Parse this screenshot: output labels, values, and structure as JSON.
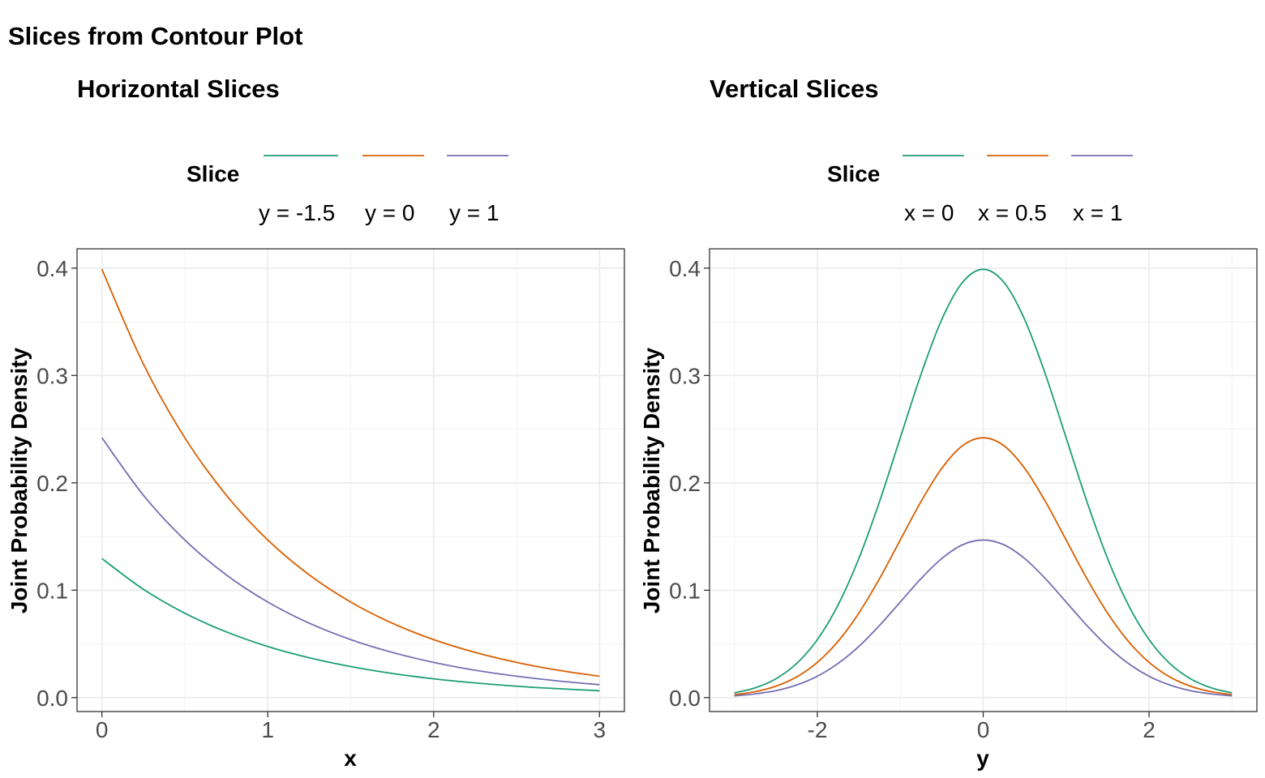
{
  "title": "Slices from Contour Plot",
  "chart_data": [
    {
      "type": "line",
      "title": "Horizontal Slices",
      "xlabel": "x",
      "ylabel": "Joint Probability Density",
      "xlim": [
        -0.15,
        3.15
      ],
      "ylim": [
        -0.013,
        0.418
      ],
      "x_ticks": [
        0,
        1,
        2,
        3
      ],
      "x_tick_labels": [
        "0",
        "1",
        "2",
        "3"
      ],
      "y_ticks": [
        0.0,
        0.1,
        0.2,
        0.3,
        0.4
      ],
      "y_tick_labels": [
        "0.0",
        "0.1",
        "0.2",
        "0.3",
        "0.4"
      ],
      "grid": true,
      "legend": {
        "title": "Slice",
        "position": "top"
      },
      "series": [
        {
          "name": "y = -1.5",
          "color": "#1b9e77",
          "x": [
            0,
            0.25,
            0.5,
            0.75,
            1,
            1.25,
            1.5,
            1.75,
            2,
            2.25,
            2.5,
            2.75,
            3
          ],
          "values": [
            0.1295,
            0.1009,
            0.0786,
            0.0612,
            0.0476,
            0.0371,
            0.0289,
            0.0225,
            0.0175,
            0.0137,
            0.0106,
            0.0083,
            0.0064
          ]
        },
        {
          "name": "y = 0",
          "color": "#d95f02",
          "x": [
            0,
            0.25,
            0.5,
            0.75,
            1,
            1.25,
            1.5,
            1.75,
            2,
            2.25,
            2.5,
            2.75,
            3
          ],
          "values": [
            0.3989,
            0.3107,
            0.242,
            0.1885,
            0.1468,
            0.1143,
            0.089,
            0.0693,
            0.054,
            0.0421,
            0.0328,
            0.0255,
            0.0199
          ]
        },
        {
          "name": "y = 1",
          "color": "#7570b3",
          "x": [
            0,
            0.25,
            0.5,
            0.75,
            1,
            1.25,
            1.5,
            1.75,
            2,
            2.25,
            2.5,
            2.75,
            3
          ],
          "values": [
            0.242,
            0.1885,
            0.1468,
            0.1143,
            0.089,
            0.0693,
            0.054,
            0.0421,
            0.0328,
            0.0255,
            0.0199,
            0.0155,
            0.012
          ]
        }
      ]
    },
    {
      "type": "line",
      "title": "Vertical Slices",
      "xlabel": "y",
      "ylabel": "Joint Probability Density",
      "xlim": [
        -3.3,
        3.3
      ],
      "ylim": [
        -0.013,
        0.418
      ],
      "x_ticks": [
        -2,
        0,
        2
      ],
      "x_tick_labels": [
        "-2",
        "0",
        "2"
      ],
      "y_ticks": [
        0.0,
        0.1,
        0.2,
        0.3,
        0.4
      ],
      "y_tick_labels": [
        "0.0",
        "0.1",
        "0.2",
        "0.3",
        "0.4"
      ],
      "grid": true,
      "legend": {
        "title": "Slice",
        "position": "top"
      },
      "series": [
        {
          "name": "x = 0",
          "color": "#1b9e77",
          "x": [
            -3,
            -2.75,
            -2.5,
            -2.25,
            -2,
            -1.75,
            -1.5,
            -1.25,
            -1,
            -0.75,
            -0.5,
            -0.25,
            0,
            0.25,
            0.5,
            0.75,
            1,
            1.25,
            1.5,
            1.75,
            2,
            2.25,
            2.5,
            2.75,
            3
          ],
          "values": [
            0.0044,
            0.0091,
            0.0175,
            0.0317,
            0.054,
            0.0863,
            0.1295,
            0.1826,
            0.242,
            0.3011,
            0.3521,
            0.3867,
            0.3989,
            0.3867,
            0.3521,
            0.3011,
            0.242,
            0.1826,
            0.1295,
            0.0863,
            0.054,
            0.0317,
            0.0175,
            0.0091,
            0.0044
          ]
        },
        {
          "name": "x = 0.5",
          "color": "#d95f02",
          "x": [
            -3,
            -2.75,
            -2.5,
            -2.25,
            -2,
            -1.75,
            -1.5,
            -1.25,
            -1,
            -0.75,
            -0.5,
            -0.25,
            0,
            0.25,
            0.5,
            0.75,
            1,
            1.25,
            1.5,
            1.75,
            2,
            2.25,
            2.5,
            2.75,
            3
          ],
          "values": [
            0.0027,
            0.0055,
            0.0106,
            0.0192,
            0.0328,
            0.0524,
            0.0786,
            0.1108,
            0.1468,
            0.1826,
            0.2135,
            0.2346,
            0.242,
            0.2346,
            0.2135,
            0.1826,
            0.1468,
            0.1108,
            0.0786,
            0.0524,
            0.0328,
            0.0192,
            0.0106,
            0.0055,
            0.0027
          ]
        },
        {
          "name": "x = 1",
          "color": "#7570b3",
          "x": [
            -3,
            -2.75,
            -2.5,
            -2.25,
            -2,
            -1.75,
            -1.5,
            -1.25,
            -1,
            -0.75,
            -0.5,
            -0.25,
            0,
            0.25,
            0.5,
            0.75,
            1,
            1.25,
            1.5,
            1.75,
            2,
            2.25,
            2.5,
            2.75,
            3
          ],
          "values": [
            0.0016,
            0.0034,
            0.0064,
            0.0117,
            0.0199,
            0.0318,
            0.0476,
            0.0672,
            0.089,
            0.1108,
            0.1295,
            0.1423,
            0.1468,
            0.1423,
            0.1295,
            0.1108,
            0.089,
            0.0672,
            0.0476,
            0.0318,
            0.0199,
            0.0117,
            0.0064,
            0.0034,
            0.0016
          ]
        }
      ]
    }
  ]
}
